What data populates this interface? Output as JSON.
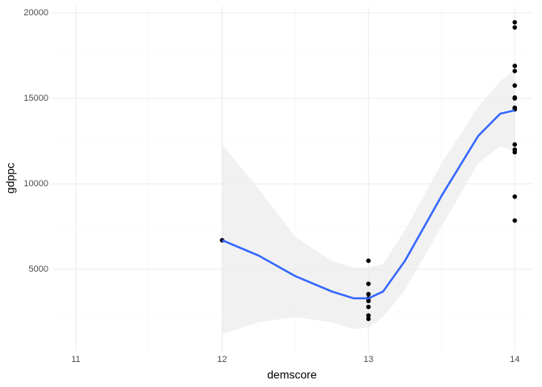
{
  "chart_data": {
    "type": "scatter",
    "x_label": "demscore",
    "y_label": "gdppc",
    "x": [
      12,
      13,
      13,
      13,
      13,
      13,
      13,
      13,
      13,
      14,
      14,
      14,
      14,
      14,
      14,
      14,
      14,
      14,
      14,
      14,
      14,
      14,
      14
    ],
    "values": [
      6700,
      5500,
      4150,
      3550,
      3300,
      3150,
      2800,
      2300,
      2100,
      19450,
      19150,
      16900,
      16600,
      15750,
      15050,
      15000,
      14450,
      14350,
      12300,
      12000,
      11850,
      9250,
      7850
    ],
    "color": "#000000",
    "smooth": {
      "color": "#3366ff",
      "band_color": "#ebebeb",
      "x": [
        12,
        12.25,
        12.5,
        12.75,
        12.9,
        13,
        13.1,
        13.25,
        13.5,
        13.75,
        13.9,
        14
      ],
      "values": [
        6700,
        5800,
        4600,
        3700,
        3300,
        3300,
        3700,
        5500,
        9300,
        12800,
        14100,
        14300
      ],
      "lower": [
        1200,
        1900,
        2200,
        1900,
        1500,
        1600,
        2200,
        3800,
        7500,
        11200,
        12200,
        11900
      ],
      "upper": [
        12300,
        9700,
        6900,
        5500,
        5100,
        5100,
        5300,
        7300,
        11200,
        14500,
        16000,
        16700
      ]
    },
    "xlim": [
      10.84,
      14.12
    ],
    "ylim": [
      236,
      20377
    ],
    "xticks": [
      11,
      12,
      13,
      14
    ],
    "yticks": [
      5000,
      10000,
      15000,
      20000
    ],
    "minor_xticks": [
      11.5,
      12.5,
      13.5
    ],
    "minor_yticks": [
      2500,
      7500,
      12500,
      17500
    ],
    "grid": true
  }
}
